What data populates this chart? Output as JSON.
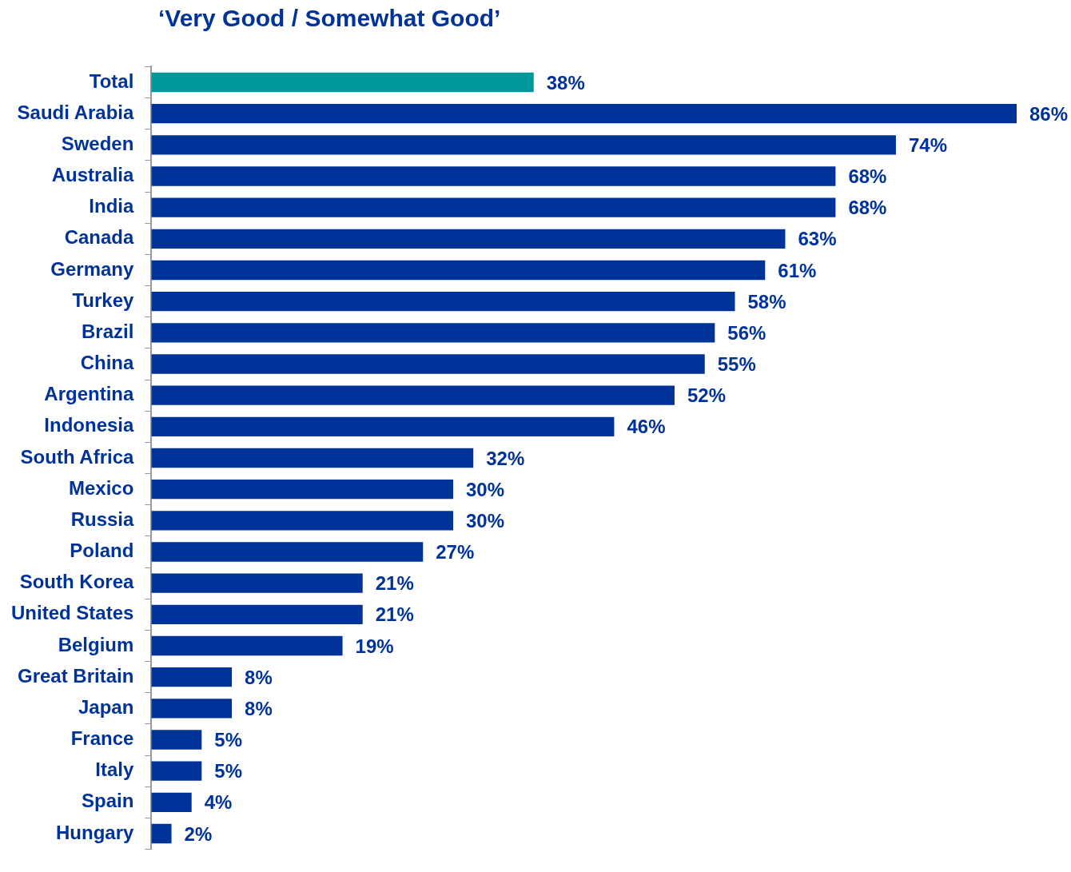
{
  "chart_data": {
    "type": "bar",
    "orientation": "horizontal",
    "title": "‘Very Good / Somewhat Good’",
    "categories": [
      "Total",
      "Saudi Arabia",
      "Sweden",
      "Australia",
      "India",
      "Canada",
      "Germany",
      "Turkey",
      "Brazil",
      "China",
      "Argentina",
      "Indonesia",
      "South Africa",
      "Mexico",
      "Russia",
      "Poland",
      "South Korea",
      "United States",
      "Belgium",
      "Great Britain",
      "Japan",
      "France",
      "Italy",
      "Spain",
      "Hungary"
    ],
    "values": [
      38,
      86,
      74,
      68,
      68,
      63,
      61,
      58,
      56,
      55,
      52,
      46,
      32,
      30,
      30,
      27,
      21,
      21,
      19,
      8,
      8,
      5,
      5,
      4,
      2
    ],
    "value_labels": [
      "38%",
      "86%",
      "74%",
      "68%",
      "68%",
      "63%",
      "61%",
      "58%",
      "56%",
      "55%",
      "52%",
      "46%",
      "32%",
      "30%",
      "30%",
      "27%",
      "21%",
      "21%",
      "19%",
      "8%",
      "8%",
      "5%",
      "5%",
      "4%",
      "2%"
    ],
    "colors": [
      "#009999",
      "#003399",
      "#003399",
      "#003399",
      "#003399",
      "#003399",
      "#003399",
      "#003399",
      "#003399",
      "#003399",
      "#003399",
      "#003399",
      "#003399",
      "#003399",
      "#003399",
      "#003399",
      "#003399",
      "#003399",
      "#003399",
      "#003399",
      "#003399",
      "#003399",
      "#003399",
      "#003399",
      "#003399"
    ],
    "tick_labels": "y",
    "grid": false,
    "legend": false
  }
}
